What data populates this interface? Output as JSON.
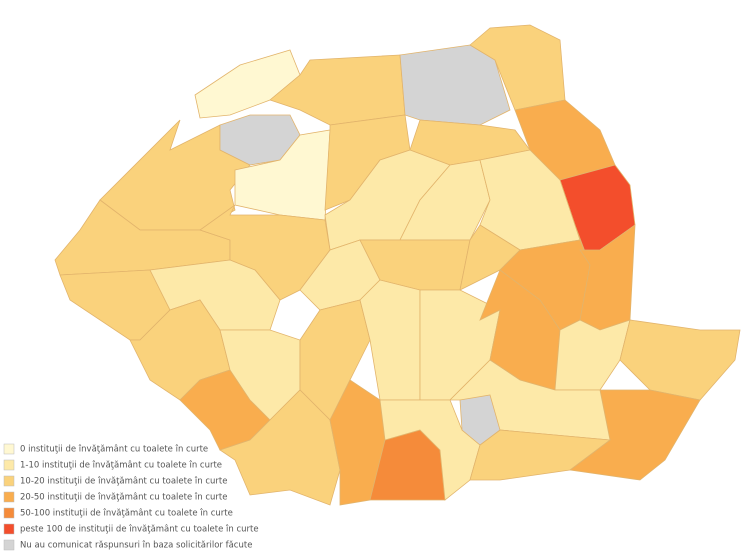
{
  "legend": {
    "items": [
      {
        "label": "0 instituţii de învăţământ cu toalete în curte",
        "color": "#fff8d2"
      },
      {
        "label": "1-10 instituţii de învăţământ cu toalete în curte",
        "color": "#fde9a8"
      },
      {
        "label": "10-20 instituţii de învăţământ cu toalete în curte",
        "color": "#fad27c"
      },
      {
        "label": "20-50 instituţii de învăţământ cu toalete în curte",
        "color": "#f9ad4e"
      },
      {
        "label": "50-100 instituţii de învăţământ cu toalete în curte",
        "color": "#f58b3a"
      },
      {
        "label": "peste 100 de instituţii de învăţământ cu toalete în curte",
        "color": "#f34e2c"
      },
      {
        "label": "Nu au comunicat răspunsuri în baza solicitărilor făcute",
        "color": "#d4d4d4"
      }
    ]
  }
}
